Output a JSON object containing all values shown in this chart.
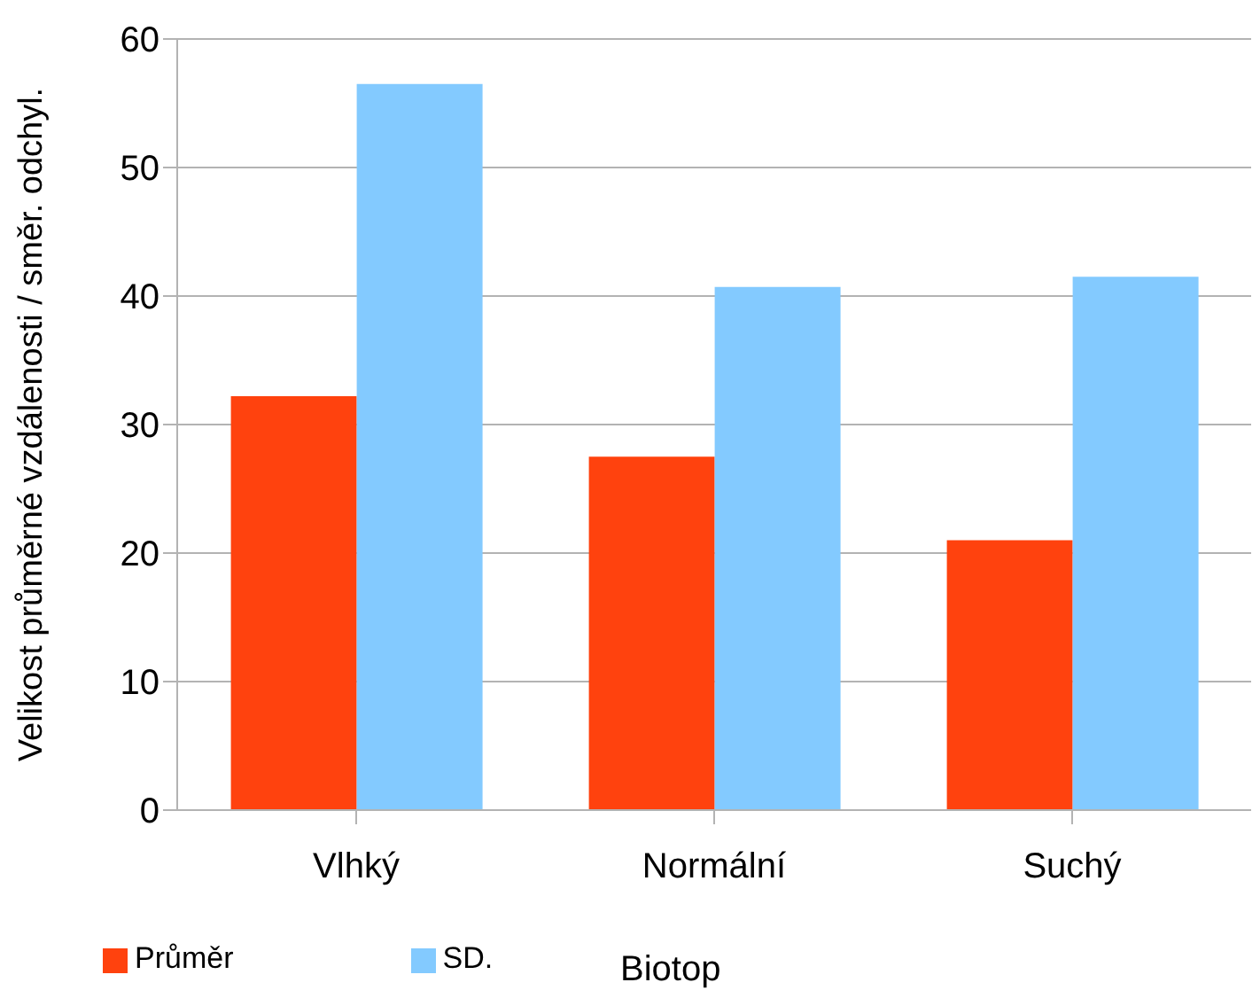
{
  "chart_data": {
    "type": "bar",
    "ylabel": "Velikost průměrné vzdálenosti / směr. odchyl.",
    "xlabel": "Biotop",
    "categories": [
      "Vlhký",
      "Normální",
      "Suchý"
    ],
    "series": [
      {
        "name": "Průměr",
        "color": "#ff420e",
        "values": [
          32.2,
          27.5,
          21
        ]
      },
      {
        "name": "SD.",
        "color": "#83caff",
        "values": [
          56.5,
          40.7,
          41.5
        ]
      }
    ],
    "ylim": [
      0,
      60
    ],
    "yticks": [
      0,
      10,
      20,
      30,
      40,
      50,
      60
    ],
    "grid": "y",
    "legend": "bottom"
  }
}
